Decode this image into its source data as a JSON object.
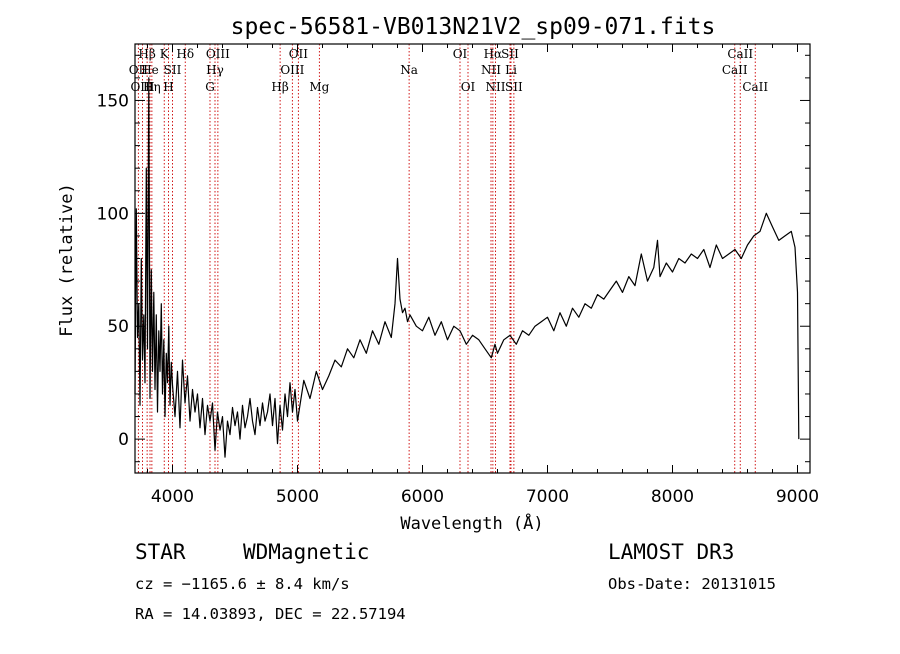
{
  "chart_data": {
    "type": "line",
    "title": "spec-56581-VB013N21V2_sp09-071.fits",
    "xlabel": "Wavelength (Å)",
    "ylabel": "Flux (relative)",
    "xlim": [
      3700,
      9100
    ],
    "ylim": [
      -15,
      175
    ],
    "x_ticks": [
      4000,
      5000,
      6000,
      7000,
      8000,
      9000
    ],
    "y_ticks": [
      0,
      50,
      100,
      150
    ],
    "grid": false,
    "series": [
      {
        "color": "#000000",
        "x": [
          3700,
          3710,
          3720,
          3730,
          3740,
          3750,
          3760,
          3770,
          3780,
          3790,
          3800,
          3810,
          3820,
          3830,
          3840,
          3850,
          3860,
          3870,
          3880,
          3890,
          3900,
          3910,
          3920,
          3930,
          3940,
          3950,
          3960,
          3970,
          3980,
          3990,
          4000,
          4020,
          4040,
          4060,
          4080,
          4100,
          4120,
          4140,
          4160,
          4180,
          4200,
          4220,
          4240,
          4260,
          4280,
          4300,
          4320,
          4340,
          4360,
          4380,
          4400,
          4420,
          4440,
          4460,
          4480,
          4500,
          4520,
          4540,
          4560,
          4580,
          4600,
          4620,
          4640,
          4660,
          4680,
          4700,
          4720,
          4740,
          4760,
          4780,
          4800,
          4820,
          4840,
          4860,
          4880,
          4900,
          4920,
          4940,
          4960,
          4980,
          5000,
          5050,
          5100,
          5150,
          5200,
          5250,
          5300,
          5350,
          5400,
          5450,
          5500,
          5550,
          5600,
          5650,
          5700,
          5750,
          5780,
          5800,
          5820,
          5840,
          5860,
          5880,
          5900,
          5950,
          6000,
          6050,
          6100,
          6150,
          6200,
          6250,
          6300,
          6350,
          6400,
          6450,
          6500,
          6550,
          6580,
          6600,
          6650,
          6700,
          6750,
          6800,
          6850,
          6900,
          6950,
          7000,
          7050,
          7100,
          7150,
          7200,
          7250,
          7300,
          7350,
          7400,
          7450,
          7500,
          7550,
          7600,
          7650,
          7700,
          7750,
          7800,
          7850,
          7880,
          7900,
          7950,
          8000,
          8050,
          8100,
          8150,
          8200,
          8250,
          8300,
          8350,
          8400,
          8450,
          8500,
          8550,
          8600,
          8650,
          8700,
          8750,
          8800,
          8850,
          8900,
          8950,
          8980,
          9000,
          9010
        ],
        "y": [
          20,
          102,
          45,
          60,
          15,
          80,
          35,
          55,
          25,
          120,
          40,
          160,
          18,
          75,
          30,
          65,
          22,
          55,
          12,
          48,
          30,
          60,
          20,
          44,
          10,
          38,
          25,
          50,
          15,
          34,
          24,
          10,
          30,
          5,
          35,
          16,
          28,
          8,
          22,
          12,
          20,
          5,
          18,
          2,
          15,
          8,
          16,
          -5,
          12,
          4,
          10,
          -8,
          8,
          2,
          14,
          6,
          12,
          0,
          15,
          5,
          10,
          18,
          8,
          2,
          14,
          6,
          16,
          8,
          12,
          20,
          6,
          18,
          -2,
          15,
          4,
          20,
          10,
          25,
          12,
          22,
          8,
          26,
          18,
          30,
          22,
          28,
          35,
          32,
          40,
          36,
          44,
          38,
          48,
          42,
          52,
          45,
          60,
          80,
          62,
          56,
          58,
          52,
          55,
          50,
          48,
          54,
          46,
          52,
          44,
          50,
          48,
          42,
          46,
          44,
          40,
          36,
          42,
          38,
          44,
          46,
          42,
          48,
          46,
          50,
          52,
          54,
          48,
          56,
          50,
          58,
          54,
          60,
          58,
          64,
          62,
          66,
          70,
          65,
          72,
          68,
          82,
          70,
          76,
          88,
          72,
          78,
          74,
          80,
          78,
          82,
          80,
          84,
          76,
          86,
          80,
          82,
          84,
          80,
          86,
          90,
          92,
          100,
          94,
          88,
          90,
          92,
          85,
          65,
          0
        ]
      }
    ],
    "reference_lines": {
      "color": "#cc0000",
      "lines": [
        {
          "label": "Hβ",
          "x": 3797,
          "row": 0
        },
        {
          "label": "OII",
          "x": 3727,
          "row": 1
        },
        {
          "label": "OIII",
          "x": 3760,
          "row": 2
        },
        {
          "label": "He",
          "x": 3820,
          "row": 1
        },
        {
          "label": "Hη",
          "x": 3835,
          "row": 2
        },
        {
          "label": "K",
          "x": 3934,
          "row": 0
        },
        {
          "label": "SII",
          "x": 4000,
          "row": 1
        },
        {
          "label": "H",
          "x": 3968,
          "row": 2
        },
        {
          "label": "Hδ",
          "x": 4102,
          "row": 0
        },
        {
          "label": "OIII",
          "x": 4363,
          "row": 0
        },
        {
          "label": "Hγ",
          "x": 4340,
          "row": 1
        },
        {
          "label": "G",
          "x": 4300,
          "row": 2
        },
        {
          "label": "Hβ",
          "x": 4861,
          "row": 2
        },
        {
          "label": "OII",
          "x": 5007,
          "row": 0
        },
        {
          "label": "OIII",
          "x": 4959,
          "row": 1
        },
        {
          "label": "Mg",
          "x": 5175,
          "row": 2
        },
        {
          "label": "Na",
          "x": 5893,
          "row": 1
        },
        {
          "label": "OI",
          "x": 6300,
          "row": 0
        },
        {
          "label": "OI",
          "x": 6364,
          "row": 2
        },
        {
          "label": "Hα",
          "x": 6563,
          "row": 0
        },
        {
          "label": "NII",
          "x": 6548,
          "row": 1
        },
        {
          "label": "NII",
          "x": 6584,
          "row": 2
        },
        {
          "label": "SII",
          "x": 6700,
          "row": 0
        },
        {
          "label": "Li",
          "x": 6708,
          "row": 1
        },
        {
          "label": "SII",
          "x": 6731,
          "row": 2
        },
        {
          "label": "CaII",
          "x": 8542,
          "row": 0
        },
        {
          "label": "CaII",
          "x": 8498,
          "row": 1
        },
        {
          "label": "CaII",
          "x": 8662,
          "row": 2
        }
      ]
    }
  },
  "info": {
    "object_class": "STAR",
    "subclass": "WDMagnetic",
    "survey": "LAMOST DR3",
    "cz": "cz = −1165.6 ± 8.4 km/s",
    "obs_date": "Obs-Date: 20131015",
    "coords": "RA =  14.03893, DEC =  22.57194"
  }
}
